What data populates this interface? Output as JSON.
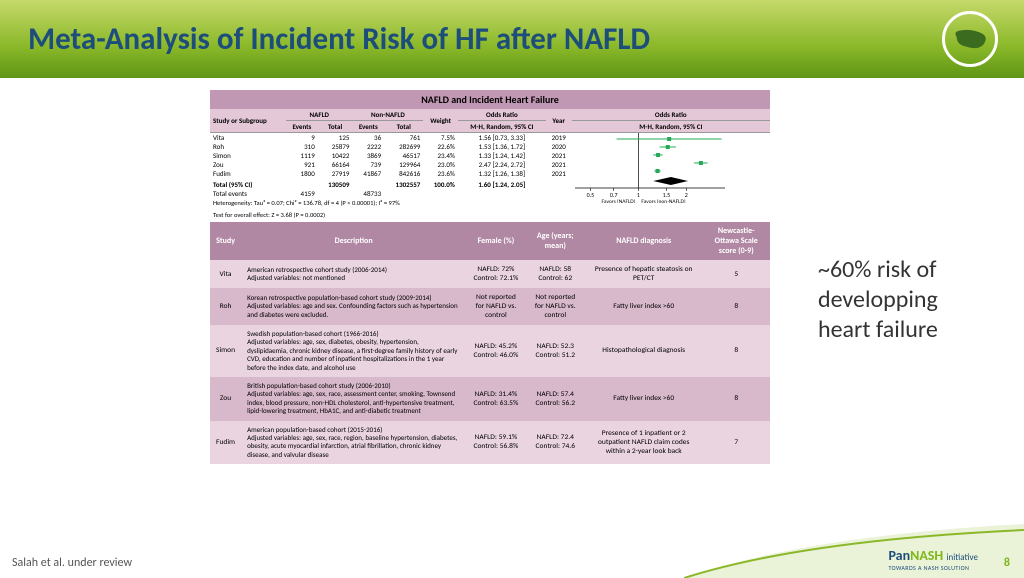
{
  "title": "Meta-Analysis of Incident Risk of HF after NAFLD",
  "forest": {
    "title": "NAFLD and Incident Heart Failure",
    "group_labels": {
      "g1": "NAFLD",
      "g2": "Non-NAFLD",
      "or": "Odds Ratio",
      "orplot": "Odds Ratio"
    },
    "headers": [
      "Study or Subgroup",
      "Events",
      "Total",
      "Events",
      "Total",
      "Weight",
      "M-H, Random, 95% CI",
      "Year",
      "M-H, Random, 95% CI"
    ],
    "rows": [
      {
        "study": "Vita",
        "e1": "9",
        "t1": "125",
        "e2": "36",
        "t2": "761",
        "w": "7.5%",
        "or": "1.56 [0.73, 3.33]",
        "yr": "2019",
        "est": 1.56,
        "lo": 0.73,
        "hi": 3.33
      },
      {
        "study": "Roh",
        "e1": "310",
        "t1": "25879",
        "e2": "2222",
        "t2": "282699",
        "w": "22.6%",
        "or": "1.53 [1.36, 1.72]",
        "yr": "2020",
        "est": 1.53,
        "lo": 1.36,
        "hi": 1.72
      },
      {
        "study": "Simon",
        "e1": "1119",
        "t1": "10422",
        "e2": "3869",
        "t2": "46517",
        "w": "23.4%",
        "or": "1.33 [1.24, 1.42]",
        "yr": "2021",
        "est": 1.33,
        "lo": 1.24,
        "hi": 1.42
      },
      {
        "study": "Zou",
        "e1": "921",
        "t1": "66164",
        "e2": "739",
        "t2": "129964",
        "w": "23.0%",
        "or": "2.47 [2.24, 2.72]",
        "yr": "2021",
        "est": 2.47,
        "lo": 2.24,
        "hi": 2.72
      },
      {
        "study": "Fudim",
        "e1": "1800",
        "t1": "27919",
        "e2": "41867",
        "t2": "842616",
        "w": "23.6%",
        "or": "1.32 [1.26, 1.38]",
        "yr": "2021",
        "est": 1.32,
        "lo": 1.26,
        "hi": 1.38
      }
    ],
    "total": {
      "label": "Total (95% CI)",
      "t1": "130509",
      "t2": "1302557",
      "w": "100.0%",
      "or": "1.60 [1.24, 2.05]",
      "est": 1.6,
      "lo": 1.24,
      "hi": 2.05
    },
    "total_events": {
      "label": "Total events",
      "e1": "4159",
      "e2": "48733"
    },
    "heterogeneity": "Heterogeneity: Tau² = 0.07; Chi² = 136.78, df = 4 (P < 0.00001); I² = 97%",
    "overall": "Test for overall effect: Z = 3.68 (P = 0.0002)",
    "axis_ticks": [
      "0.5",
      "0.7",
      "1",
      "1.5",
      "2"
    ],
    "favors": {
      "left": "Favors [NAFLD]",
      "right": "Favors [non-NAFLD]"
    }
  },
  "studies": {
    "headers": [
      "Study",
      "Description",
      "Female (%)",
      "Age (years; mean)",
      "NAFLD diagnosis",
      "Newcastle-Ottawa Scale score (0-9)"
    ],
    "rows": [
      {
        "study": "Vita",
        "desc": "American retrospective cohort study (2006-2014)\nAdjusted variables: not mentioned",
        "female": "NAFLD: 72%\nControl: 72.1%",
        "age": "NAFLD: 58\nControl: 62",
        "diag": "Presence of hepatic steatosis on PET/CT",
        "nos": "5"
      },
      {
        "study": "Roh",
        "desc": "Korean retrospective population-based cohort study (2009-2014)\nAdjusted variables: age and sex. Confounding factors such as hypertension and diabetes were excluded.",
        "female": "Not reported for NAFLD vs. control",
        "age": "Not reported for NAFLD vs. control",
        "diag": "Fatty liver index >60",
        "nos": "8"
      },
      {
        "study": "Simon",
        "desc": "Swedish population-based cohort (1966-2016)\nAdjusted variables: age, sex, diabetes, obesity, hypertension, dyslipidaemia, chronic kidney disease, a first-degree family history of early CVD, education and number of inpatient hospitalizations in the 1 year before the index date, and alcohol use",
        "female": "NAFLD: 45.2%\nControl: 46.0%",
        "age": "NAFLD: 52.3\nControl: 51.2",
        "diag": "Histopathological diagnosis",
        "nos": "8"
      },
      {
        "study": "Zou",
        "desc": "British population-based cohort study (2006-2010)\nAdjusted variables: age, sex, race, assessment center, smoking, Townsend index, blood pressure, non-HDL cholesterol, anti-hypertensive treatment, lipid-lowering treatment, HbA1C, and anti-diabetic treatment",
        "female": "NAFLD: 31.4%\nControl: 63.5%",
        "age": "NAFLD: 57.4\nControl: 56.2",
        "diag": "Fatty liver index >60",
        "nos": "8"
      },
      {
        "study": "Fudim",
        "desc": "American population-based cohort (2015-2016)\nAdjusted variables: age, sex, race, region, baseline hypertension, diabetes, obesity, acute myocardial infarction, atrial fibrillation, chronic kidney disease, and valvular disease",
        "female": "NAFLD: 59.1%\nControl: 56.8%",
        "age": "NAFLD: 72.4\nControl: 74.6",
        "diag": "Presence of 1 inpatient or 2 outpatient NAFLD claim codes within a 2-year look back",
        "nos": "7"
      }
    ]
  },
  "callout": "~60% risk of developping heart failure",
  "footer": {
    "citation": "Salah et al. under review",
    "logo_pan": "Pan",
    "logo_nash": "NASH",
    "logo_init": "initiative",
    "logo_tag": "TOWARDS A NASH SOLUTION",
    "page": "8"
  },
  "colors": {
    "title_text": "#1d4e7b",
    "band_grad_top": "#c6d96a",
    "forest_header": "#c198b3",
    "studies_header": "#b188a3",
    "row_even": "#ead4e0",
    "row_odd": "#d8b8cb",
    "accent": "#7fb719"
  }
}
